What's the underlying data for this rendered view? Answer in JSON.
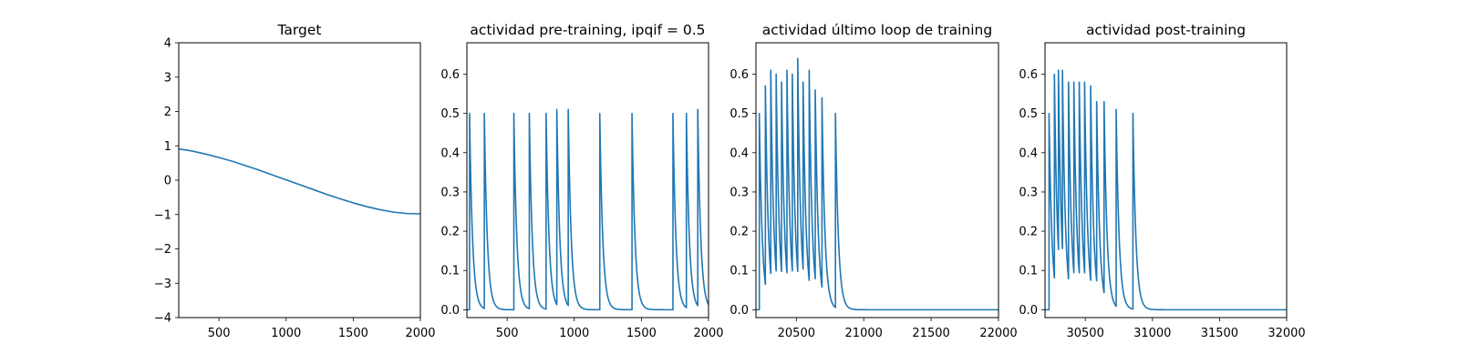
{
  "colors": {
    "series": "#1f77b4",
    "axes": "#000000",
    "background": "#ffffff"
  },
  "chart_data": [
    {
      "type": "line",
      "title": "Target",
      "xlabel": "",
      "ylabel": "",
      "xlim": [
        200,
        2000
      ],
      "ylim": [
        -4,
        4
      ],
      "xticks": [
        500,
        1000,
        1500,
        2000
      ],
      "yticks": [
        -4,
        -3,
        -2,
        -1,
        0,
        1,
        2,
        3,
        4
      ],
      "grid": false,
      "series": [
        {
          "x": [
            200,
            300,
            400,
            500,
            600,
            700,
            800,
            900,
            1000,
            1100,
            1200,
            1300,
            1400,
            1500,
            1600,
            1700,
            1800,
            1900,
            2000
          ],
          "y": [
            0.91,
            0.85,
            0.76,
            0.66,
            0.55,
            0.42,
            0.29,
            0.15,
            0.01,
            -0.13,
            -0.27,
            -0.41,
            -0.54,
            -0.66,
            -0.77,
            -0.86,
            -0.93,
            -0.97,
            -0.98
          ]
        }
      ]
    },
    {
      "type": "line",
      "title": "actividad pre-training, ipqif = 0.5",
      "xlabel": "",
      "ylabel": "",
      "xlim": [
        200,
        2000
      ],
      "ylim": [
        -0.02,
        0.68
      ],
      "xticks": [
        500,
        1000,
        1500,
        2000
      ],
      "yticks": [
        0.0,
        0.1,
        0.2,
        0.3,
        0.4,
        0.5,
        0.6
      ],
      "grid": false,
      "spike_model": {
        "decay_tau": 22,
        "baseline_before_first": 0.0
      },
      "spikes": [
        {
          "x": 220,
          "peak": 0.5
        },
        {
          "x": 330,
          "peak": 0.5
        },
        {
          "x": 550,
          "peak": 0.5
        },
        {
          "x": 665,
          "peak": 0.5
        },
        {
          "x": 790,
          "peak": 0.5
        },
        {
          "x": 870,
          "peak": 0.51
        },
        {
          "x": 955,
          "peak": 0.51
        },
        {
          "x": 1190,
          "peak": 0.5
        },
        {
          "x": 1430,
          "peak": 0.5
        },
        {
          "x": 1735,
          "peak": 0.5
        },
        {
          "x": 1835,
          "peak": 0.5
        },
        {
          "x": 1920,
          "peak": 0.51
        }
      ]
    },
    {
      "type": "line",
      "title": "actividad último loop de training",
      "xlabel": "",
      "ylabel": "",
      "xlim": [
        20200,
        22000
      ],
      "ylim": [
        -0.02,
        0.68
      ],
      "xticks": [
        20500,
        21000,
        21500,
        22000
      ],
      "yticks": [
        0.0,
        0.1,
        0.2,
        0.3,
        0.4,
        0.5,
        0.6
      ],
      "grid": false,
      "spike_model": {
        "decay_tau": 22,
        "baseline_before_first": 0.0
      },
      "spikes": [
        {
          "x": 20225,
          "peak": 0.5
        },
        {
          "x": 20270,
          "peak": 0.57
        },
        {
          "x": 20310,
          "peak": 0.61
        },
        {
          "x": 20350,
          "peak": 0.6
        },
        {
          "x": 20390,
          "peak": 0.58
        },
        {
          "x": 20430,
          "peak": 0.61
        },
        {
          "x": 20470,
          "peak": 0.6
        },
        {
          "x": 20510,
          "peak": 0.64
        },
        {
          "x": 20550,
          "peak": 0.58
        },
        {
          "x": 20595,
          "peak": 0.61
        },
        {
          "x": 20640,
          "peak": 0.56
        },
        {
          "x": 20690,
          "peak": 0.54
        },
        {
          "x": 20790,
          "peak": 0.5
        }
      ]
    },
    {
      "type": "line",
      "title": "actividad post-training",
      "xlabel": "",
      "ylabel": "",
      "xlim": [
        30200,
        32000
      ],
      "ylim": [
        -0.02,
        0.68
      ],
      "xticks": [
        30500,
        31000,
        31500,
        32000
      ],
      "yticks": [
        0.0,
        0.1,
        0.2,
        0.3,
        0.4,
        0.5,
        0.6
      ],
      "grid": false,
      "spike_model": {
        "decay_tau": 22,
        "baseline_before_first": 0.0
      },
      "spikes": [
        {
          "x": 30230,
          "peak": 0.5
        },
        {
          "x": 30270,
          "peak": 0.6
        },
        {
          "x": 30300,
          "peak": 0.61
        },
        {
          "x": 30330,
          "peak": 0.61
        },
        {
          "x": 30375,
          "peak": 0.58
        },
        {
          "x": 30415,
          "peak": 0.58
        },
        {
          "x": 30455,
          "peak": 0.58
        },
        {
          "x": 30495,
          "peak": 0.58
        },
        {
          "x": 30540,
          "peak": 0.57
        },
        {
          "x": 30585,
          "peak": 0.53
        },
        {
          "x": 30640,
          "peak": 0.53
        },
        {
          "x": 30730,
          "peak": 0.51
        },
        {
          "x": 30855,
          "peak": 0.5
        }
      ]
    }
  ]
}
